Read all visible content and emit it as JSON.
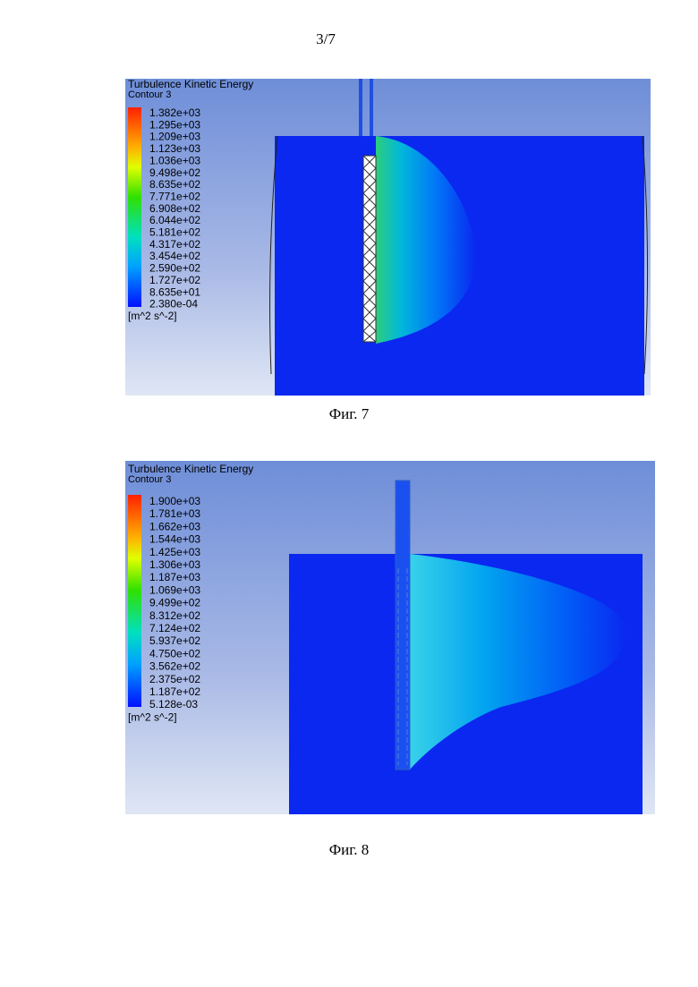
{
  "page_number": "3/7",
  "figures": [
    {
      "title": "Turbulence Kinetic Energy",
      "subtitle": "Contour 3",
      "legend_labels": [
        "1.382e+03",
        "1.295e+03",
        "1.209e+03",
        "1.123e+03",
        "1.036e+03",
        "9.498e+02",
        "8.635e+02",
        "7.771e+02",
        "6.908e+02",
        "6.044e+02",
        "5.181e+02",
        "4.317e+02",
        "3.454e+02",
        "2.590e+02",
        "1.727e+02",
        "8.635e+01",
        "2.380e-04"
      ],
      "units": "[m^2 s^-2]",
      "caption": "Фиг. 7"
    },
    {
      "title": "Turbulence Kinetic Energy",
      "subtitle": "Contour 3",
      "legend_labels": [
        "1.900e+03",
        "1.781e+03",
        "1.662e+03",
        "1.544e+03",
        "1.425e+03",
        "1.306e+03",
        "1.187e+03",
        "1.069e+03",
        "9.499e+02",
        "8.312e+02",
        "7.124e+02",
        "5.937e+02",
        "4.750e+02",
        "3.562e+02",
        "2.375e+02",
        "1.187e+02",
        "5.128e-03"
      ],
      "units": "[m^2 s^-2]",
      "caption": "Фиг. 8"
    }
  ]
}
